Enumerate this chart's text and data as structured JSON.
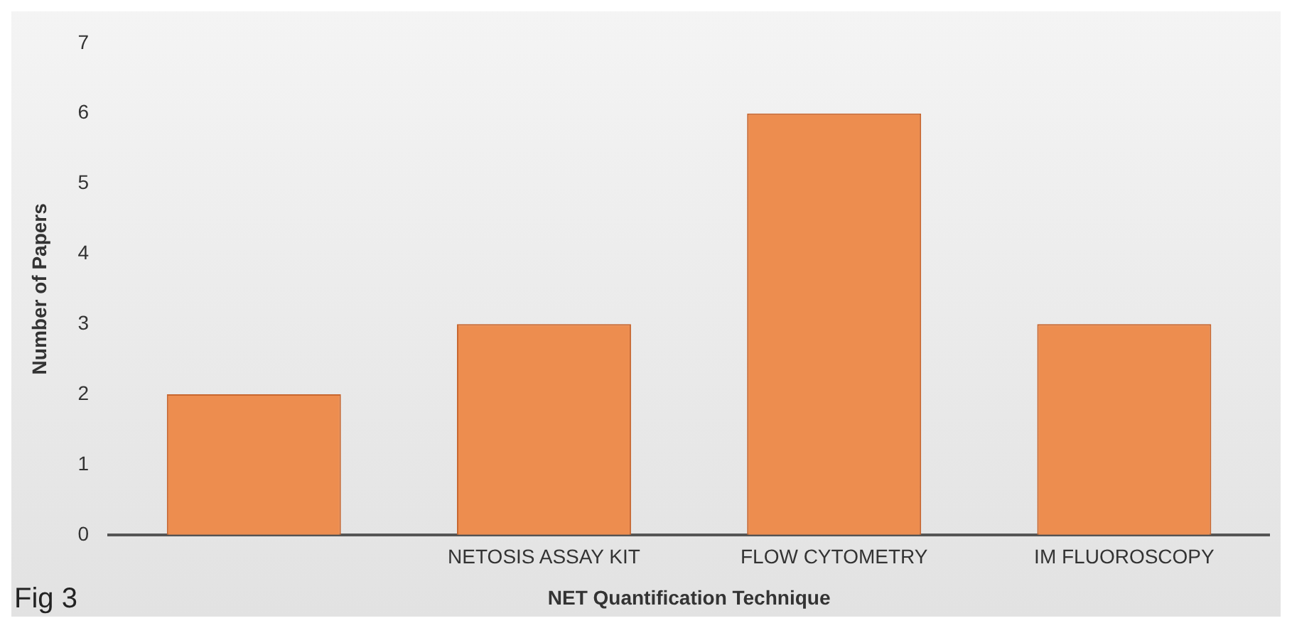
{
  "chart_data": {
    "type": "bar",
    "xlabel": "NET Quantification Technique",
    "ylabel": "Number of Papers",
    "categories": [
      null,
      "NETOSIS ASSAY KIT",
      "FLOW CYTOMETRY",
      "IM FLUOROSCOPY"
    ],
    "values": [
      2,
      3,
      6,
      3
    ],
    "color": "#ed8d4f",
    "ylim": [
      0,
      7
    ],
    "yticks": [
      0,
      1,
      2,
      3,
      4,
      5,
      6,
      7
    ],
    "grid": false,
    "legend": false,
    "annotations": [
      "Fig 3"
    ]
  }
}
